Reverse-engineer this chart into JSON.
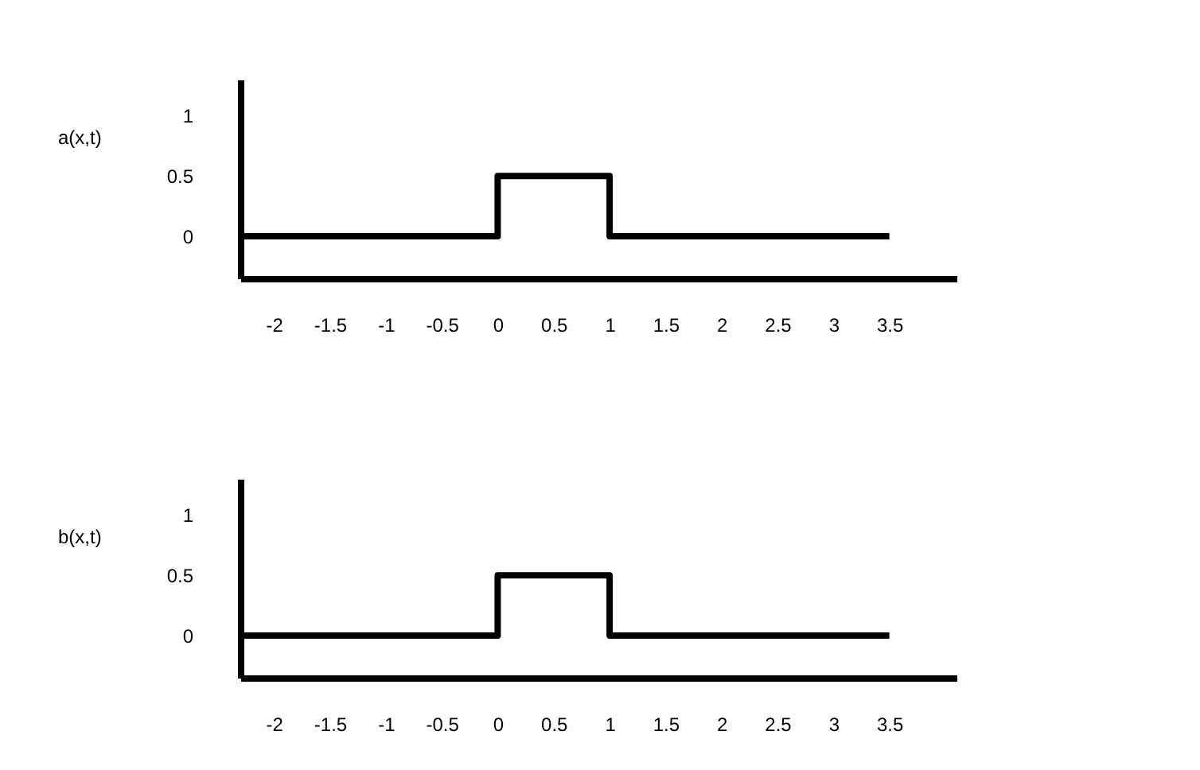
{
  "chart_data": [
    {
      "type": "step",
      "ylabel": "a(x,t)",
      "x": [
        -2.3,
        0,
        1,
        3.5
      ],
      "series": [
        {
          "color": "#000000",
          "values": [
            0,
            0.5,
            0,
            0
          ]
        }
      ],
      "xlim": [
        -2.3,
        4.1
      ],
      "xticks": [
        -2,
        -1.5,
        -1,
        -0.5,
        0,
        0.5,
        1,
        1.5,
        2,
        2.5,
        3,
        3.5
      ],
      "ylim": [
        -0.35,
        1.3
      ],
      "yticks": [
        0,
        0.5,
        1
      ]
    },
    {
      "type": "step",
      "ylabel": "b(x,t)",
      "x": [
        -2.3,
        0,
        1,
        3.5
      ],
      "series": [
        {
          "color": "#000000",
          "values": [
            0,
            0.5,
            0,
            0
          ]
        }
      ],
      "xlim": [
        -2.3,
        4.1
      ],
      "xticks": [
        -2,
        -1.5,
        -1,
        -0.5,
        0,
        0.5,
        1,
        1.5,
        2,
        2.5,
        3,
        3.5
      ],
      "ylim": [
        -0.35,
        1.3
      ],
      "yticks": [
        0,
        0.5,
        1
      ]
    }
  ]
}
